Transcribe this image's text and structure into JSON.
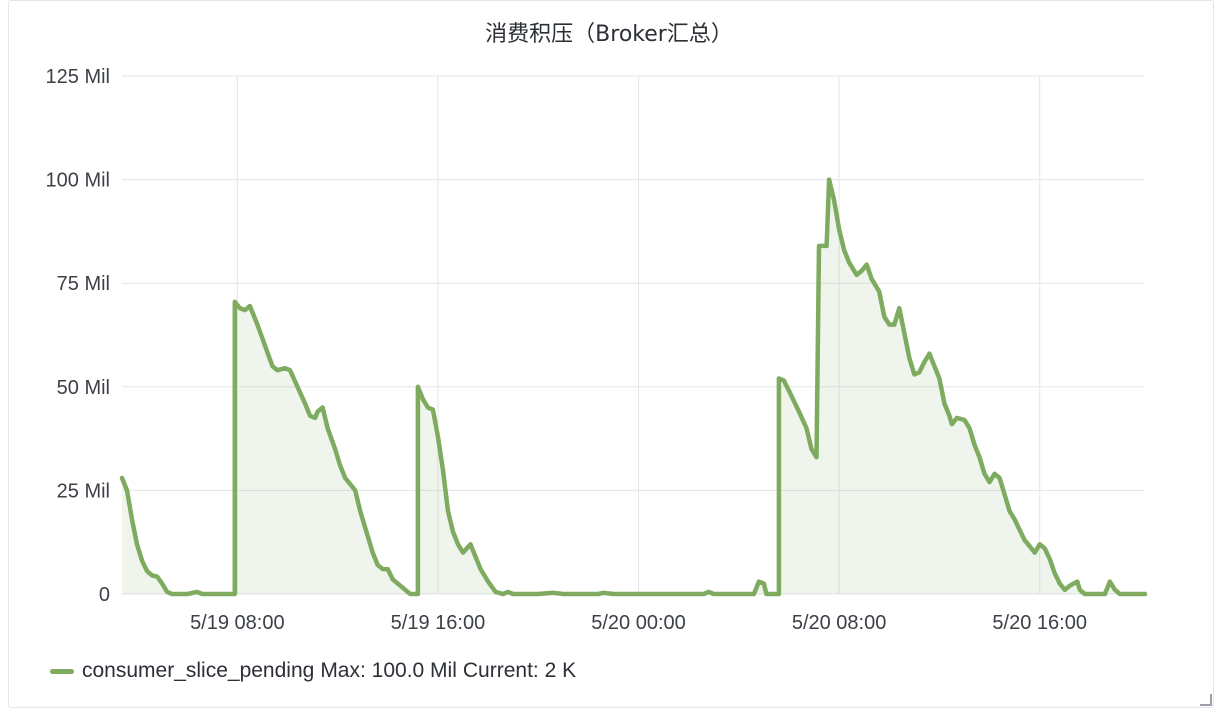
{
  "panel": {
    "title": "消费积压（Broker汇总）"
  },
  "legend": {
    "series_name": "consumer_slice_pending",
    "max_label": "Max: 100.0 Mil",
    "current_label": "Current: 2 K",
    "color": "#7eab60"
  },
  "chart_data": {
    "type": "area",
    "title": "消费积压（Broker汇总）",
    "y_ticks": [
      {
        "value": 0,
        "label": "0"
      },
      {
        "value": 25,
        "label": "25 Mil"
      },
      {
        "value": 50,
        "label": "50 Mil"
      },
      {
        "value": 75,
        "label": "75 Mil"
      },
      {
        "value": 100,
        "label": "100 Mil"
      },
      {
        "value": 125,
        "label": "125 Mil"
      }
    ],
    "x_ticks": [
      {
        "value": 8,
        "label": "5/19 08:00"
      },
      {
        "value": 16,
        "label": "5/19 16:00"
      },
      {
        "value": 24,
        "label": "5/20 00:00"
      },
      {
        "value": 32,
        "label": "5/20 08:00"
      },
      {
        "value": 40,
        "label": "5/20 16:00"
      }
    ],
    "xlim": [
      3.4,
      44.2
    ],
    "ylim": [
      0,
      125
    ],
    "grid": true,
    "legend_position": "bottom-left",
    "series": [
      {
        "name": "consumer_slice_pending",
        "color": "#7eab60",
        "unit": "Mil",
        "points": [
          [
            3.4,
            28
          ],
          [
            3.6,
            25
          ],
          [
            3.8,
            18
          ],
          [
            4.0,
            12
          ],
          [
            4.2,
            8
          ],
          [
            4.4,
            5.5
          ],
          [
            4.6,
            4.5
          ],
          [
            4.8,
            4.2
          ],
          [
            5.0,
            2.5
          ],
          [
            5.2,
            0.5
          ],
          [
            5.4,
            0
          ],
          [
            6.0,
            0
          ],
          [
            6.4,
            0.5
          ],
          [
            6.6,
            0
          ],
          [
            7.8,
            0
          ],
          [
            7.9,
            0
          ],
          [
            7.9,
            70.5
          ],
          [
            8.1,
            69
          ],
          [
            8.3,
            68.5
          ],
          [
            8.5,
            69.5
          ],
          [
            8.8,
            65
          ],
          [
            9.1,
            60
          ],
          [
            9.4,
            55
          ],
          [
            9.6,
            54
          ],
          [
            9.9,
            54.5
          ],
          [
            10.1,
            54
          ],
          [
            10.4,
            50
          ],
          [
            10.7,
            46
          ],
          [
            10.9,
            43
          ],
          [
            11.1,
            42.5
          ],
          [
            11.2,
            44
          ],
          [
            11.4,
            45
          ],
          [
            11.6,
            40
          ],
          [
            11.9,
            35
          ],
          [
            12.1,
            31
          ],
          [
            12.3,
            28
          ],
          [
            12.5,
            26.5
          ],
          [
            12.7,
            25
          ],
          [
            12.9,
            20
          ],
          [
            13.2,
            14
          ],
          [
            13.4,
            10
          ],
          [
            13.6,
            7
          ],
          [
            13.8,
            6
          ],
          [
            14.0,
            6
          ],
          [
            14.2,
            3.5
          ],
          [
            14.5,
            2
          ],
          [
            14.7,
            1
          ],
          [
            14.9,
            0
          ],
          [
            15.2,
            0
          ],
          [
            15.2,
            50
          ],
          [
            15.4,
            47
          ],
          [
            15.6,
            45
          ],
          [
            15.8,
            44.5
          ],
          [
            16.0,
            38
          ],
          [
            16.2,
            30
          ],
          [
            16.4,
            20
          ],
          [
            16.6,
            15
          ],
          [
            16.8,
            12
          ],
          [
            17.0,
            10
          ],
          [
            17.3,
            12
          ],
          [
            17.5,
            9
          ],
          [
            17.7,
            6
          ],
          [
            18.0,
            3
          ],
          [
            18.3,
            0.5
          ],
          [
            18.6,
            0
          ],
          [
            18.8,
            0.5
          ],
          [
            19.0,
            0
          ],
          [
            20.0,
            0
          ],
          [
            20.6,
            0.3
          ],
          [
            21.0,
            0
          ],
          [
            22.4,
            0
          ],
          [
            22.6,
            0.3
          ],
          [
            23.0,
            0
          ],
          [
            26.6,
            0
          ],
          [
            26.8,
            0.5
          ],
          [
            27.0,
            0
          ],
          [
            28.0,
            0
          ],
          [
            28.6,
            0
          ],
          [
            28.8,
            3
          ],
          [
            29.0,
            2.5
          ],
          [
            29.1,
            0
          ],
          [
            29.6,
            0
          ],
          [
            29.6,
            52
          ],
          [
            29.8,
            51.5
          ],
          [
            30.0,
            49
          ],
          [
            30.4,
            44
          ],
          [
            30.7,
            40
          ],
          [
            30.9,
            35
          ],
          [
            31.1,
            33
          ],
          [
            31.2,
            84
          ],
          [
            31.5,
            84
          ],
          [
            31.6,
            100
          ],
          [
            31.8,
            95
          ],
          [
            32.0,
            88
          ],
          [
            32.2,
            83
          ],
          [
            32.4,
            80
          ],
          [
            32.7,
            77
          ],
          [
            32.9,
            78
          ],
          [
            33.1,
            79.5
          ],
          [
            33.3,
            76
          ],
          [
            33.5,
            74
          ],
          [
            33.6,
            73
          ],
          [
            33.8,
            67
          ],
          [
            34.0,
            65
          ],
          [
            34.2,
            65
          ],
          [
            34.4,
            69
          ],
          [
            34.6,
            63
          ],
          [
            34.8,
            57
          ],
          [
            35.0,
            53
          ],
          [
            35.2,
            53.5
          ],
          [
            35.4,
            56
          ],
          [
            35.6,
            58
          ],
          [
            35.8,
            55
          ],
          [
            36.0,
            52
          ],
          [
            36.2,
            46
          ],
          [
            36.4,
            43
          ],
          [
            36.5,
            41
          ],
          [
            36.7,
            42.5
          ],
          [
            37.0,
            42
          ],
          [
            37.2,
            40
          ],
          [
            37.4,
            36
          ],
          [
            37.6,
            33
          ],
          [
            37.8,
            29
          ],
          [
            38.0,
            27
          ],
          [
            38.2,
            29
          ],
          [
            38.4,
            28
          ],
          [
            38.6,
            24
          ],
          [
            38.8,
            20
          ],
          [
            39.0,
            18
          ],
          [
            39.2,
            15.5
          ],
          [
            39.4,
            13
          ],
          [
            39.6,
            11.5
          ],
          [
            39.8,
            10
          ],
          [
            40.0,
            12
          ],
          [
            40.2,
            11
          ],
          [
            40.4,
            8.5
          ],
          [
            40.6,
            5
          ],
          [
            40.8,
            2.5
          ],
          [
            41.0,
            1
          ],
          [
            41.2,
            2
          ],
          [
            41.5,
            3
          ],
          [
            41.6,
            1
          ],
          [
            41.8,
            0
          ],
          [
            42.0,
            0
          ],
          [
            42.4,
            0
          ],
          [
            42.6,
            0
          ],
          [
            42.8,
            3
          ],
          [
            43.0,
            1
          ],
          [
            43.2,
            0
          ],
          [
            43.6,
            0
          ],
          [
            44.2,
            0
          ]
        ]
      }
    ]
  }
}
